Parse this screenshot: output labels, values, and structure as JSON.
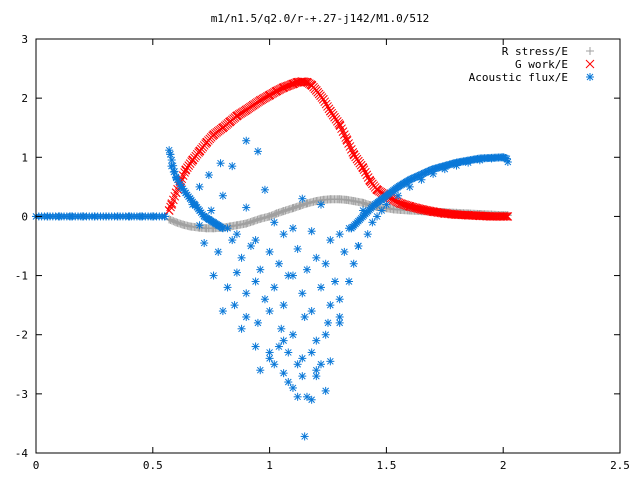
{
  "chart_data": {
    "type": "scatter",
    "title": "m1/n1.5/q2.0/r-+.27-j142/M1.0/512",
    "xlabel": "",
    "ylabel": "",
    "xlim": [
      0,
      2.5
    ],
    "ylim": [
      -4,
      3
    ],
    "x_ticks": [
      0,
      0.5,
      1,
      1.5,
      2,
      2.5
    ],
    "x_tick_labels": [
      "0",
      "0.5",
      "1",
      "1.5",
      "2",
      "2.5"
    ],
    "y_ticks": [
      -4,
      -3,
      -2,
      -1,
      0,
      1,
      2,
      3
    ],
    "y_tick_labels": [
      "-4",
      "-3",
      "-2",
      "-1",
      "0",
      "1",
      "2",
      "3"
    ],
    "grid": false,
    "legend_position": "top-right",
    "series": [
      {
        "name": "R stress/E",
        "marker": "plus",
        "color": "#a0a0a0",
        "x": [
          0.57,
          0.6,
          0.63,
          0.66,
          0.7,
          0.73,
          0.76,
          0.8,
          0.83,
          0.86,
          0.9,
          0.93,
          0.96,
          1.0,
          1.03,
          1.06,
          1.1,
          1.13,
          1.16,
          1.2,
          1.23,
          1.26,
          1.3,
          1.33,
          1.36,
          1.4,
          1.43,
          1.46,
          1.5,
          1.53,
          1.56,
          1.6,
          1.65,
          1.7,
          1.75,
          1.8,
          1.85,
          1.9,
          1.95,
          2.0,
          2.02
        ],
        "y": [
          -0.05,
          -0.1,
          -0.14,
          -0.17,
          -0.19,
          -0.2,
          -0.2,
          -0.19,
          -0.17,
          -0.15,
          -0.12,
          -0.08,
          -0.04,
          0.0,
          0.05,
          0.09,
          0.14,
          0.18,
          0.22,
          0.26,
          0.28,
          0.29,
          0.29,
          0.28,
          0.26,
          0.23,
          0.19,
          0.16,
          0.14,
          0.12,
          0.11,
          0.1,
          0.09,
          0.08,
          0.07,
          0.06,
          0.05,
          0.04,
          0.03,
          0.02,
          0.02
        ]
      },
      {
        "name": "G work/E",
        "marker": "cross",
        "color": "#ff0000",
        "x": [
          0.57,
          0.58,
          0.6,
          0.62,
          0.64,
          0.67,
          0.7,
          0.73,
          0.76,
          0.8,
          0.83,
          0.86,
          0.9,
          0.93,
          0.96,
          1.0,
          1.03,
          1.06,
          1.1,
          1.12,
          1.14,
          1.16,
          1.18,
          1.2,
          1.23,
          1.26,
          1.3,
          1.33,
          1.36,
          1.4,
          1.43,
          1.46,
          1.5,
          1.53,
          1.56,
          1.6,
          1.65,
          1.7,
          1.75,
          1.8,
          1.85,
          1.9,
          1.95,
          2.0,
          2.02
        ],
        "y": [
          0.1,
          0.2,
          0.4,
          0.6,
          0.78,
          0.95,
          1.1,
          1.25,
          1.38,
          1.5,
          1.6,
          1.7,
          1.8,
          1.88,
          1.96,
          2.05,
          2.12,
          2.18,
          2.24,
          2.27,
          2.28,
          2.27,
          2.22,
          2.13,
          1.98,
          1.78,
          1.55,
          1.3,
          1.05,
          0.82,
          0.6,
          0.45,
          0.35,
          0.28,
          0.22,
          0.17,
          0.12,
          0.08,
          0.05,
          0.03,
          0.02,
          0.01,
          0.0,
          0.0,
          0.0
        ]
      },
      {
        "name": "Acoustic flux/E",
        "marker": "star",
        "color": "#0a78d8",
        "x": [
          0.0,
          0.05,
          0.1,
          0.15,
          0.2,
          0.25,
          0.3,
          0.35,
          0.4,
          0.45,
          0.5,
          0.55,
          0.57,
          0.575,
          0.58,
          0.59,
          0.6,
          0.62,
          0.64,
          0.66,
          0.68,
          0.7,
          0.72,
          0.74,
          0.76,
          0.78,
          0.8,
          0.67,
          0.7,
          0.74,
          0.79,
          0.84,
          0.9,
          0.95,
          0.7,
          0.75,
          0.8,
          0.82,
          0.86,
          0.9,
          0.94,
          0.98,
          1.02,
          1.06,
          1.1,
          1.14,
          1.18,
          1.22,
          1.26,
          1.3,
          1.34,
          1.38,
          0.72,
          0.78,
          0.84,
          0.88,
          0.92,
          0.96,
          1.0,
          1.04,
          1.08,
          1.12,
          1.16,
          1.2,
          1.24,
          1.28,
          1.32,
          1.36,
          0.76,
          0.82,
          0.86,
          0.9,
          0.94,
          0.98,
          1.02,
          1.06,
          1.1,
          1.14,
          1.18,
          1.22,
          1.26,
          1.3,
          1.34,
          0.8,
          0.85,
          0.9,
          0.95,
          1.0,
          1.05,
          1.1,
          1.15,
          1.2,
          1.25,
          1.3,
          0.88,
          0.94,
          1.0,
          1.06,
          1.12,
          1.18,
          1.24,
          1.3,
          0.96,
          1.02,
          1.08,
          1.14,
          1.2,
          1.26,
          1.0,
          1.06,
          1.12,
          1.18,
          1.24,
          1.04,
          1.1,
          1.16,
          1.22,
          1.08,
          1.14,
          1.2,
          1.15,
          1.35,
          1.38,
          1.4,
          1.42,
          1.44,
          1.46,
          1.48,
          1.5,
          1.55,
          1.6,
          1.65,
          1.7,
          1.75,
          1.8,
          1.85,
          1.9,
          1.95,
          2.0,
          2.02
        ],
        "y": [
          0,
          0,
          0,
          0,
          0,
          0,
          0,
          0,
          0,
          0,
          0,
          0,
          1.12,
          1.05,
          0.85,
          0.75,
          0.65,
          0.5,
          0.4,
          0.3,
          0.2,
          0.1,
          0.0,
          -0.05,
          -0.1,
          -0.15,
          -0.2,
          0.2,
          0.5,
          0.7,
          0.9,
          0.85,
          1.28,
          1.1,
          -0.15,
          0.1,
          0.35,
          -0.2,
          -0.3,
          0.15,
          -0.4,
          0.45,
          -0.1,
          -0.3,
          -0.2,
          0.3,
          -0.25,
          0.2,
          -0.4,
          -0.3,
          -0.2,
          -0.5,
          -0.45,
          -0.6,
          -0.4,
          -0.7,
          -0.5,
          -0.9,
          -0.6,
          -0.8,
          -1.0,
          -0.55,
          -0.9,
          -0.7,
          -0.8,
          -1.1,
          -0.6,
          -0.8,
          -1.0,
          -1.2,
          -0.95,
          -1.3,
          -1.1,
          -1.4,
          -1.2,
          -1.5,
          -1.0,
          -1.3,
          -1.6,
          -1.2,
          -1.5,
          -1.4,
          -1.1,
          -1.6,
          -1.5,
          -1.7,
          -1.8,
          -1.6,
          -1.9,
          -2.0,
          -1.7,
          -2.1,
          -1.8,
          -1.7,
          -1.9,
          -2.2,
          -2.4,
          -2.1,
          -2.5,
          -2.3,
          -2.0,
          -1.8,
          -2.6,
          -2.5,
          -2.8,
          -2.4,
          -2.7,
          -2.45,
          -2.3,
          -2.65,
          -3.05,
          -3.1,
          -2.95,
          -2.2,
          -2.9,
          -3.05,
          -2.5,
          -2.3,
          -2.7,
          -2.6,
          -3.72,
          -0.2,
          -0.5,
          0.1,
          -0.3,
          -0.1,
          0.0,
          0.1,
          0.2,
          0.35,
          0.5,
          0.62,
          0.72,
          0.8,
          0.86,
          0.91,
          0.95,
          0.98,
          1.0,
          0.92
        ]
      }
    ]
  }
}
